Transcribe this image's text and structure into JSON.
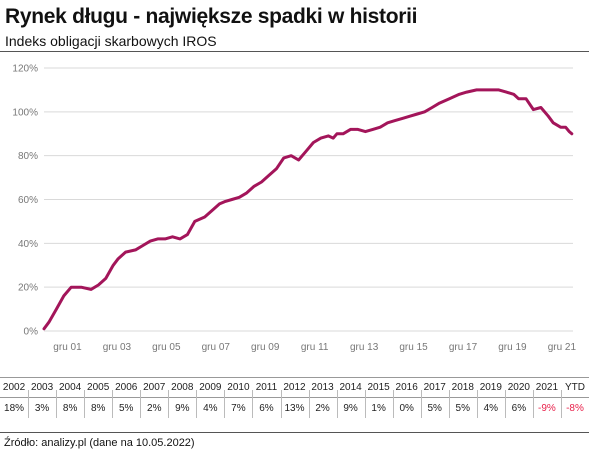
{
  "title": "Rynek długu - największe spadki w historii",
  "subtitle": "Indeks obligacji skarbowych IROS",
  "source": "Źródło: analizy.pl (dane na 10.05.2022)",
  "colors": {
    "line": "#a3155a",
    "negative": "#e8204a",
    "grid": "#d9d9d9"
  },
  "chart_data": {
    "type": "line",
    "ylim": [
      0,
      120
    ],
    "yticks": [
      0,
      20,
      40,
      60,
      80,
      100,
      120
    ],
    "ytick_labels": [
      "0%",
      "20%",
      "40%",
      "60%",
      "80%",
      "100%",
      "120%"
    ],
    "xlim": [
      2001.0,
      2022.4
    ],
    "xticks": [
      2001.95,
      2003.95,
      2005.95,
      2007.95,
      2009.95,
      2011.95,
      2013.95,
      2015.95,
      2017.95,
      2019.95,
      2021.95
    ],
    "xtick_labels": [
      "gru 01",
      "gru 03",
      "gru 05",
      "gru 07",
      "gru 09",
      "gru 11",
      "gru 13",
      "gru 15",
      "gru 17",
      "gru 19",
      "gru 21"
    ],
    "grid": true,
    "series": [
      {
        "x": [
          2001.0,
          2001.2,
          2001.5,
          2001.8,
          2002.1,
          2002.5,
          2002.9,
          2003.2,
          2003.5,
          2003.8,
          2004.0,
          2004.3,
          2004.7,
          2005.0,
          2005.3,
          2005.6,
          2005.9,
          2006.2,
          2006.5,
          2006.8,
          2007.1,
          2007.5,
          2007.9,
          2008.1,
          2008.3,
          2008.6,
          2008.9,
          2009.2,
          2009.5,
          2009.8,
          2010.1,
          2010.4,
          2010.7,
          2011.0,
          2011.3,
          2011.6,
          2011.9,
          2012.2,
          2012.5,
          2012.7,
          2012.85,
          2013.1,
          2013.4,
          2013.7,
          2014.0,
          2014.3,
          2014.6,
          2014.9,
          2015.2,
          2015.5,
          2015.8,
          2016.1,
          2016.4,
          2016.7,
          2017.0,
          2017.4,
          2017.8,
          2018.1,
          2018.5,
          2018.8,
          2019.1,
          2019.4,
          2019.7,
          2020.0,
          2020.2,
          2020.5,
          2020.8,
          2021.1,
          2021.4,
          2021.6,
          2021.9,
          2022.1,
          2022.25,
          2022.35
        ],
        "y": [
          1,
          4,
          10,
          16,
          20,
          20,
          19,
          21,
          24,
          30,
          33,
          36,
          37,
          39,
          41,
          42,
          42,
          43,
          42,
          44,
          50,
          52,
          56,
          58,
          59,
          60,
          61,
          63,
          66,
          68,
          71,
          74,
          79,
          80,
          78,
          82,
          86,
          88,
          89,
          88,
          90,
          90,
          92,
          92,
          91,
          92,
          93,
          95,
          96,
          97,
          98,
          99,
          100,
          102,
          104,
          106,
          108,
          109,
          110,
          110,
          110,
          110,
          109,
          108,
          106,
          106,
          101,
          102,
          98,
          95,
          93,
          93,
          91,
          90
        ]
      }
    ]
  },
  "table": {
    "years": [
      "2002",
      "2003",
      "2004",
      "2005",
      "2006",
      "2007",
      "2008",
      "2009",
      "2010",
      "2011",
      "2012",
      "2013",
      "2014",
      "2015",
      "2016",
      "2017",
      "2018",
      "2019",
      "2020",
      "2021",
      "YTD"
    ],
    "returns": [
      "18%",
      "3%",
      "8%",
      "8%",
      "5%",
      "2%",
      "9%",
      "4%",
      "7%",
      "6%",
      "13%",
      "2%",
      "9%",
      "1%",
      "0%",
      "5%",
      "5%",
      "4%",
      "6%",
      "-9%",
      "-8%"
    ]
  }
}
